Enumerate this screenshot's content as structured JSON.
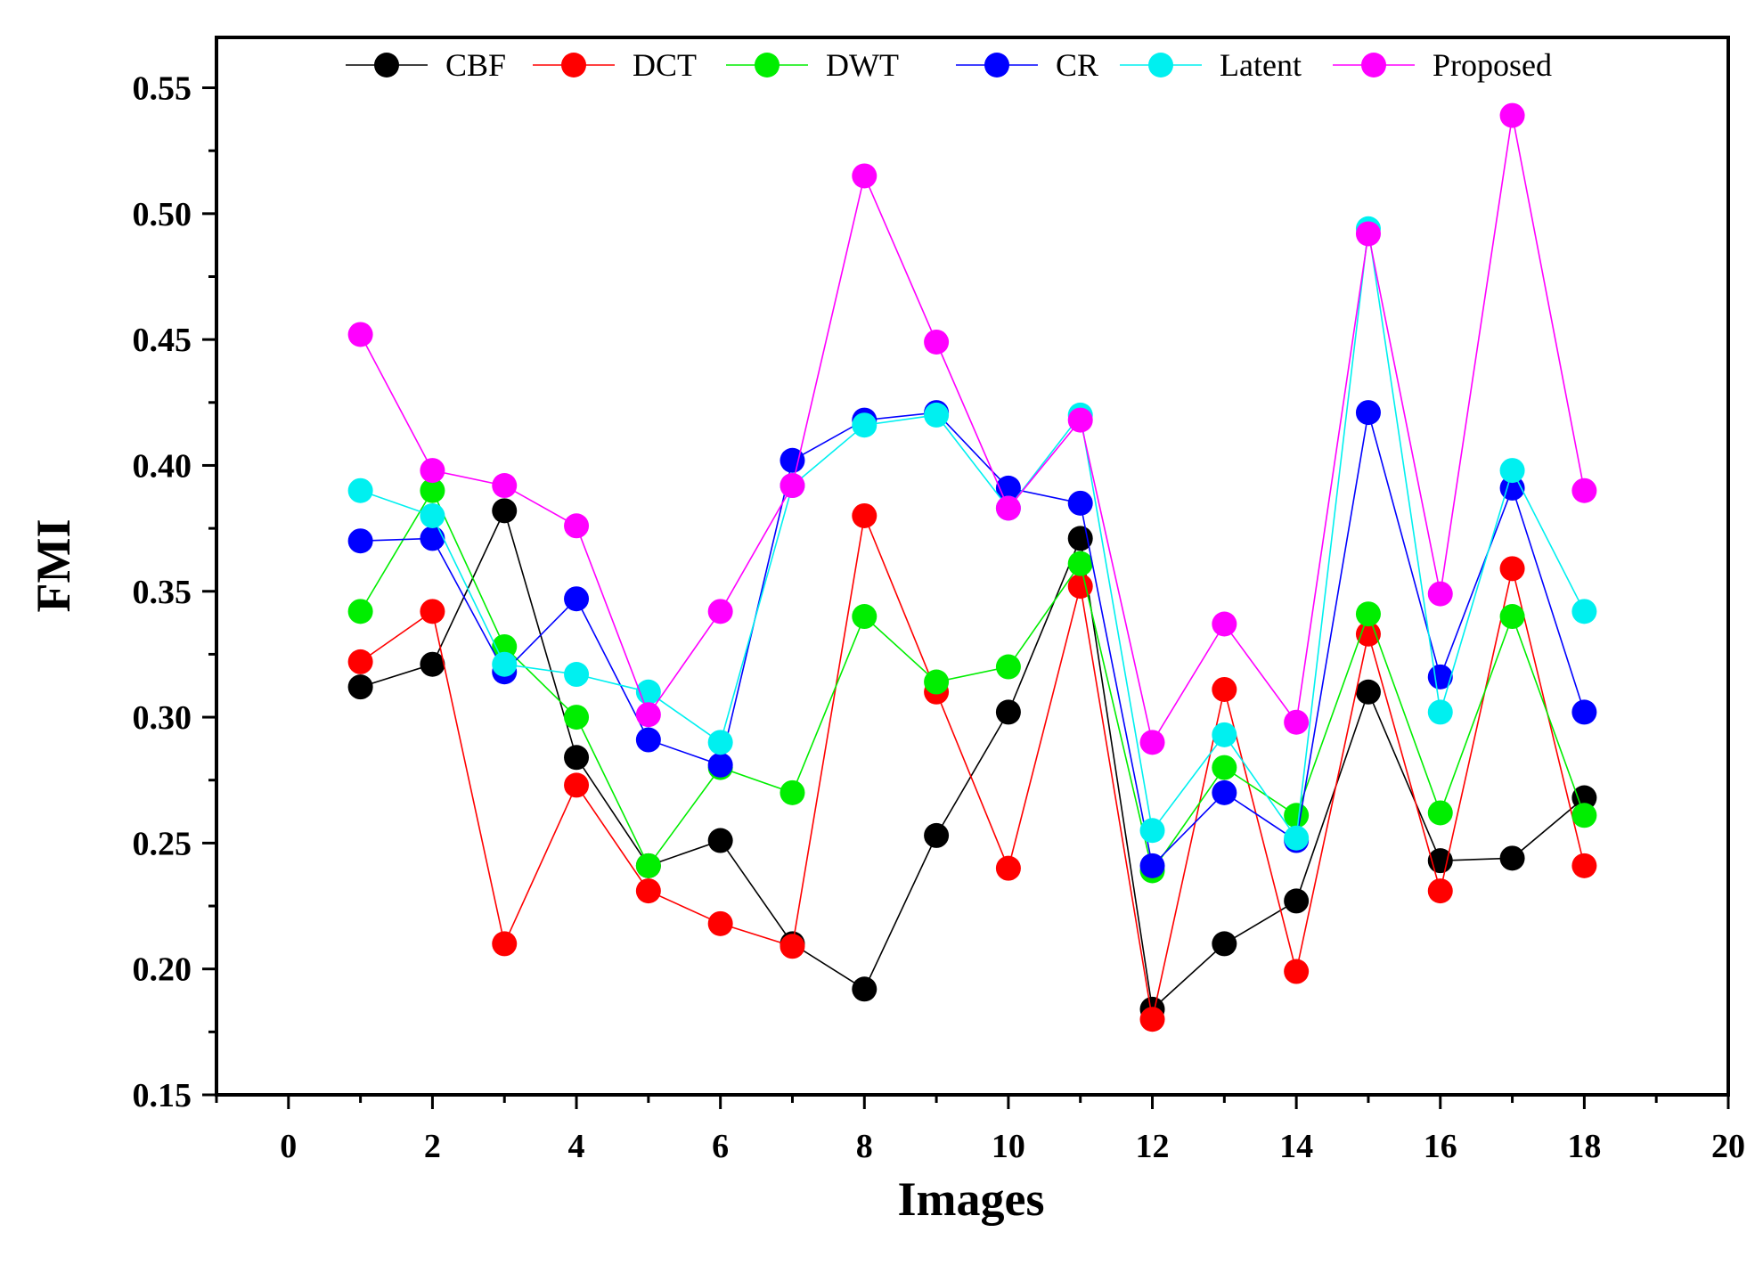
{
  "chart_data": {
    "type": "line",
    "title": "",
    "xlabel": "Images",
    "ylabel": "FMI",
    "xlim": [
      -1,
      20
    ],
    "ylim": [
      0.15,
      0.57
    ],
    "x_ticks": [
      0,
      2,
      4,
      6,
      8,
      10,
      12,
      14,
      16,
      18,
      20
    ],
    "y_ticks": [
      0.15,
      0.2,
      0.25,
      0.3,
      0.35,
      0.4,
      0.45,
      0.5,
      0.55
    ],
    "y_tick_labels": [
      "0.15",
      "0.20",
      "0.25",
      "0.30",
      "0.35",
      "0.40",
      "0.45",
      "0.50",
      "0.55"
    ],
    "legend_position": "top",
    "grid": false,
    "x": [
      1,
      2,
      3,
      4,
      5,
      6,
      7,
      8,
      9,
      10,
      11,
      12,
      13,
      14,
      15,
      16,
      17,
      18
    ],
    "series": [
      {
        "name": "CBF",
        "color": "#000000",
        "values": [
          0.312,
          0.321,
          0.382,
          0.284,
          0.241,
          0.251,
          0.21,
          0.192,
          0.253,
          0.302,
          0.371,
          0.184,
          0.21,
          0.227,
          0.31,
          0.243,
          0.244,
          0.268
        ]
      },
      {
        "name": "DCT",
        "color": "#ff0000",
        "values": [
          0.322,
          0.342,
          0.21,
          0.273,
          0.231,
          0.218,
          0.209,
          0.38,
          0.31,
          0.24,
          0.352,
          0.18,
          0.311,
          0.199,
          0.333,
          0.231,
          0.359,
          0.241
        ]
      },
      {
        "name": "DWT",
        "color": "#00ee00",
        "values": [
          0.342,
          0.39,
          0.328,
          0.3,
          0.241,
          0.28,
          0.27,
          0.34,
          0.314,
          0.32,
          0.361,
          0.239,
          0.28,
          0.261,
          0.341,
          0.262,
          0.34,
          0.261
        ]
      },
      {
        "name": "CR",
        "color": "#0000ff",
        "values": [
          0.37,
          0.371,
          0.318,
          0.347,
          0.291,
          0.281,
          0.402,
          0.418,
          0.421,
          0.391,
          0.385,
          0.241,
          0.27,
          0.251,
          0.421,
          0.316,
          0.391,
          0.302
        ]
      },
      {
        "name": "Latent",
        "color": "#00f0f0",
        "values": [
          0.39,
          0.38,
          0.321,
          0.317,
          0.31,
          0.29,
          0.392,
          0.416,
          0.42,
          0.383,
          0.42,
          0.255,
          0.293,
          0.252,
          0.494,
          0.302,
          0.398,
          0.342
        ]
      },
      {
        "name": "Proposed",
        "color": "#ff00ff",
        "values": [
          0.452,
          0.398,
          0.392,
          0.376,
          0.301,
          0.342,
          0.392,
          0.515,
          0.449,
          0.383,
          0.418,
          0.29,
          0.337,
          0.298,
          0.492,
          0.349,
          0.539,
          0.39
        ]
      }
    ]
  }
}
